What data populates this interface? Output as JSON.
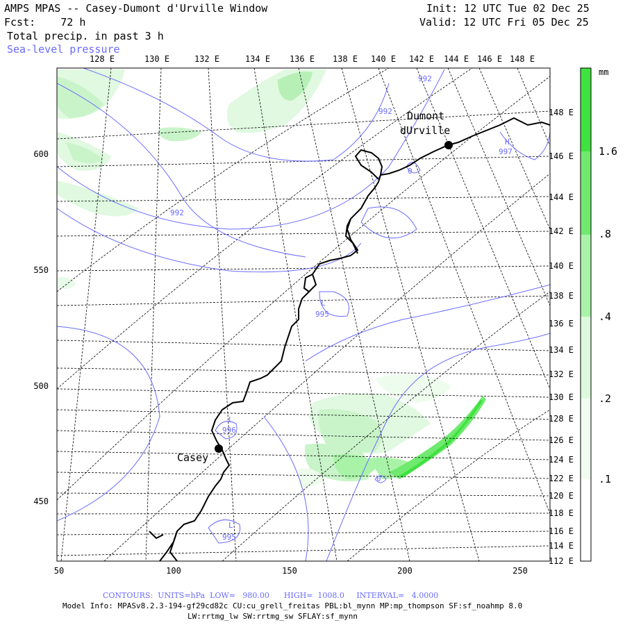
{
  "header": {
    "title": "AMPS MPAS -- Casey-Dumont d'Urville Window",
    "forecast": "Fcst:    72 h",
    "field": "Total precip. in past 3 h",
    "overlay": "Sea-level pressure",
    "init": "Init: 12 UTC Tue 02 Dec 25",
    "valid": "Valid: 12 UTC Fri 05 Dec 25"
  },
  "top_lon_labels": [
    "128 E",
    "130 E",
    "132 E",
    "134 E",
    "136 E",
    "138 E",
    "140 E",
    "142 E",
    "144 E",
    "146 E",
    "148 E"
  ],
  "right_lon_labels": [
    "148 E",
    "146 E",
    "144 E",
    "142 E",
    "140 E",
    "138 E",
    "136 E",
    "134 E",
    "132 E",
    "130 E",
    "128 E",
    "126 E",
    "124 E",
    "122 E",
    "120 E",
    "118 E",
    "116 E",
    "114 E",
    "112 E"
  ],
  "x_axis": {
    "ticks": [
      "50",
      "100",
      "150",
      "200",
      "250"
    ]
  },
  "y_axis": {
    "ticks": [
      "600",
      "550",
      "500",
      "450"
    ]
  },
  "colorbar": {
    "unit": "mm",
    "labels": [
      "1.6",
      ".8",
      ".4",
      ".2",
      ".1"
    ],
    "colors": [
      "#3fe23f",
      "#6fea6f",
      "#a9f3a9",
      "#d9f8d9",
      "#f2fdf2"
    ]
  },
  "stations": [
    {
      "label": "Casey"
    },
    {
      "label_line1": "Dumont",
      "label_line2": "dUrville"
    }
  ],
  "contour_labels": [
    "992",
    "992",
    "992",
    "997",
    "H",
    "995",
    "L",
    "996",
    "L",
    "995",
    "L",
    "0",
    "0"
  ],
  "footer": {
    "contours": "CONTOURS:  UNITS=hPa  LOW=   980.00      HIGH=  1008.0     INTERVAL=   4.0000",
    "model_info": "Model Info: MPASv8.2.3-194-gf29cd82c CU:cu_grell_freitas PBL:bl_mynn MP:mp_thompson SF:sf_noahmp 8.0",
    "model_info2": "LW:rrtmg_lw SW:rrtmg_sw SFLAY:sf_mynn"
  },
  "colors": {
    "contour": "#6a6aff",
    "coast": "#000000",
    "grid": "#000000"
  }
}
